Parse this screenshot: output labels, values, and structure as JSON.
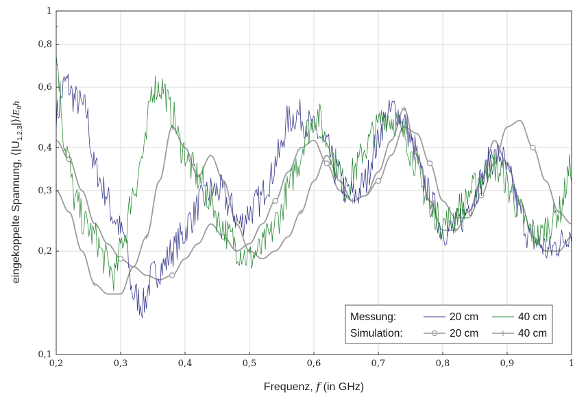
{
  "chart_data": {
    "type": "line",
    "xlabel": "Frequenz, f (in GHz)",
    "ylabel": "eingekoppelte Spannung, ⟨|U_{1,2,3}|⟩/E₀h",
    "xlim": [
      0.2,
      1.0
    ],
    "ylim": [
      0.1,
      1.0
    ],
    "yscale": "log",
    "grid": true,
    "xticks": [
      0.2,
      0.3,
      0.4,
      0.5,
      0.6,
      0.7,
      0.8,
      0.9,
      1.0
    ],
    "xtick_labels": [
      "0,2",
      "0,3",
      "0,4",
      "0,5",
      "0,6",
      "0,7",
      "0,8",
      "0,9",
      "1"
    ],
    "yticks": [
      0.1,
      0.2,
      0.3,
      0.4,
      0.6,
      0.8,
      1.0
    ],
    "ytick_labels": [
      "0,1",
      "0,2",
      "0,3",
      "0,4",
      "0,6",
      "0,8",
      "1"
    ],
    "legend": {
      "position": "bottom-right",
      "row_measured": "Messung:",
      "row_simulated": "Simulation:",
      "label_20": "20 cm",
      "label_40": "40 cm"
    },
    "series": [
      {
        "name": "Messung 20 cm",
        "color": "#3a3c8c",
        "style": "noisy",
        "x": [
          0.2,
          0.215,
          0.23,
          0.245,
          0.26,
          0.275,
          0.29,
          0.305,
          0.32,
          0.335,
          0.35,
          0.365,
          0.38,
          0.395,
          0.41,
          0.425,
          0.44,
          0.455,
          0.47,
          0.485,
          0.5,
          0.515,
          0.53,
          0.545,
          0.56,
          0.575,
          0.59,
          0.605,
          0.62,
          0.635,
          0.65,
          0.665,
          0.68,
          0.695,
          0.71,
          0.725,
          0.74,
          0.755,
          0.77,
          0.785,
          0.8,
          0.815,
          0.83,
          0.845,
          0.86,
          0.875,
          0.89,
          0.905,
          0.92,
          0.935,
          0.95,
          0.965,
          0.98,
          1.0
        ],
        "y": [
          0.5,
          0.62,
          0.55,
          0.52,
          0.35,
          0.3,
          0.25,
          0.22,
          0.15,
          0.14,
          0.17,
          0.18,
          0.2,
          0.22,
          0.25,
          0.28,
          0.3,
          0.3,
          0.27,
          0.24,
          0.26,
          0.28,
          0.32,
          0.38,
          0.48,
          0.5,
          0.47,
          0.44,
          0.4,
          0.34,
          0.3,
          0.29,
          0.32,
          0.4,
          0.48,
          0.52,
          0.47,
          0.4,
          0.32,
          0.27,
          0.23,
          0.23,
          0.25,
          0.28,
          0.32,
          0.37,
          0.38,
          0.32,
          0.26,
          0.22,
          0.21,
          0.2,
          0.21,
          0.23
        ]
      },
      {
        "name": "Messung 40 cm",
        "color": "#2e8b3a",
        "style": "noisy",
        "x": [
          0.2,
          0.215,
          0.23,
          0.245,
          0.26,
          0.275,
          0.29,
          0.305,
          0.32,
          0.335,
          0.35,
          0.365,
          0.38,
          0.395,
          0.41,
          0.425,
          0.44,
          0.455,
          0.47,
          0.485,
          0.5,
          0.515,
          0.53,
          0.545,
          0.56,
          0.575,
          0.59,
          0.605,
          0.62,
          0.635,
          0.65,
          0.665,
          0.68,
          0.695,
          0.71,
          0.725,
          0.74,
          0.755,
          0.77,
          0.785,
          0.8,
          0.815,
          0.83,
          0.845,
          0.86,
          0.875,
          0.89,
          0.905,
          0.92,
          0.935,
          0.95,
          0.965,
          0.98,
          1.0
        ],
        "y": [
          0.72,
          0.4,
          0.28,
          0.24,
          0.22,
          0.19,
          0.17,
          0.22,
          0.3,
          0.38,
          0.6,
          0.6,
          0.5,
          0.4,
          0.35,
          0.32,
          0.28,
          0.24,
          0.22,
          0.2,
          0.19,
          0.2,
          0.22,
          0.25,
          0.3,
          0.36,
          0.45,
          0.5,
          0.42,
          0.36,
          0.3,
          0.35,
          0.4,
          0.45,
          0.5,
          0.48,
          0.44,
          0.37,
          0.3,
          0.26,
          0.24,
          0.25,
          0.27,
          0.3,
          0.33,
          0.36,
          0.34,
          0.3,
          0.26,
          0.23,
          0.22,
          0.24,
          0.26,
          0.35
        ]
      },
      {
        "name": "Simulation 20 cm",
        "color": "#9c9c9c",
        "marker": "circle",
        "x": [
          0.2,
          0.22,
          0.24,
          0.26,
          0.28,
          0.3,
          0.32,
          0.34,
          0.36,
          0.38,
          0.4,
          0.42,
          0.44,
          0.46,
          0.48,
          0.5,
          0.52,
          0.54,
          0.56,
          0.58,
          0.6,
          0.62,
          0.64,
          0.66,
          0.68,
          0.7,
          0.72,
          0.74,
          0.76,
          0.78,
          0.8,
          0.82,
          0.84,
          0.86,
          0.88,
          0.9,
          0.92,
          0.94,
          0.96,
          0.98,
          1.0
        ],
        "y": [
          0.42,
          0.37,
          0.3,
          0.24,
          0.21,
          0.19,
          0.18,
          0.17,
          0.165,
          0.17,
          0.19,
          0.21,
          0.24,
          0.22,
          0.2,
          0.21,
          0.24,
          0.28,
          0.34,
          0.4,
          0.42,
          0.36,
          0.3,
          0.28,
          0.29,
          0.32,
          0.38,
          0.46,
          0.44,
          0.36,
          0.28,
          0.25,
          0.25,
          0.29,
          0.36,
          0.46,
          0.48,
          0.4,
          0.32,
          0.26,
          0.24
        ],
        "marker_x": [
          0.22,
          0.3,
          0.38,
          0.46,
          0.54,
          0.62,
          0.7,
          0.78,
          0.86,
          0.94
        ]
      },
      {
        "name": "Simulation 40 cm",
        "color": "#9c9c9c",
        "marker": "plus",
        "x": [
          0.2,
          0.22,
          0.24,
          0.26,
          0.28,
          0.3,
          0.32,
          0.34,
          0.36,
          0.38,
          0.4,
          0.42,
          0.44,
          0.46,
          0.48,
          0.5,
          0.52,
          0.54,
          0.56,
          0.58,
          0.6,
          0.62,
          0.64,
          0.66,
          0.68,
          0.7,
          0.72,
          0.74,
          0.76,
          0.78,
          0.8,
          0.82,
          0.84,
          0.86,
          0.88,
          0.9,
          0.92,
          0.94,
          0.96,
          0.98,
          1.0
        ],
        "y": [
          0.3,
          0.26,
          0.2,
          0.16,
          0.15,
          0.15,
          0.18,
          0.22,
          0.32,
          0.46,
          0.4,
          0.33,
          0.38,
          0.32,
          0.24,
          0.2,
          0.19,
          0.2,
          0.22,
          0.26,
          0.32,
          0.38,
          0.32,
          0.28,
          0.29,
          0.34,
          0.42,
          0.52,
          0.38,
          0.28,
          0.23,
          0.23,
          0.26,
          0.32,
          0.42,
          0.36,
          0.28,
          0.22,
          0.2,
          0.2,
          0.22
        ],
        "marker_x": [
          0.26,
          0.34,
          0.42,
          0.5,
          0.58,
          0.66,
          0.74,
          0.82,
          0.9,
          0.98
        ]
      }
    ]
  }
}
